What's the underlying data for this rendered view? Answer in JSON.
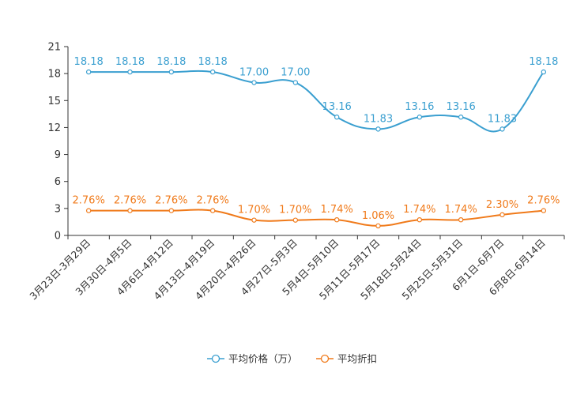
{
  "chart_data": {
    "type": "line",
    "title": "",
    "xlabel": "",
    "ylabel": "",
    "ylim": [
      0,
      21
    ],
    "yticks": [
      "0",
      "3",
      "6",
      "9",
      "12",
      "15",
      "18",
      "21"
    ],
    "categories": [
      "3月23日-3月29日",
      "3月30日-4月5日",
      "4月6日-4月12日",
      "4月13日-4月19日",
      "4月20日-4月26日",
      "4月27日-5月3日",
      "5月4日-5月10日",
      "5月11日-5月17日",
      "5月18日-5月24日",
      "5月25日-5月31日",
      "6月1日-6月7日",
      "6月8日-6月14日"
    ],
    "series": [
      {
        "name": "平均价格（万）",
        "color": "#3a9fd0",
        "values": [
          18.18,
          18.18,
          18.18,
          18.18,
          17.0,
          17.0,
          13.16,
          11.83,
          13.16,
          13.16,
          11.83,
          18.18
        ],
        "labels": [
          "18.18",
          "18.18",
          "18.18",
          "18.18",
          "17.00",
          "17.00",
          "13.16",
          "11.83",
          "13.16",
          "13.16",
          "11.83",
          "18.18"
        ]
      },
      {
        "name": "平均折扣",
        "color": "#f07a1a",
        "values": [
          2.76,
          2.76,
          2.76,
          2.76,
          1.7,
          1.7,
          1.74,
          1.06,
          1.74,
          1.74,
          2.3,
          2.76
        ],
        "labels": [
          "2.76%",
          "2.76%",
          "2.76%",
          "2.76%",
          "1.70%",
          "1.70%",
          "1.74%",
          "1.06%",
          "1.74%",
          "1.74%",
          "2.30%",
          "2.76%"
        ]
      }
    ],
    "legend_position": "bottom-center",
    "grid": false
  }
}
